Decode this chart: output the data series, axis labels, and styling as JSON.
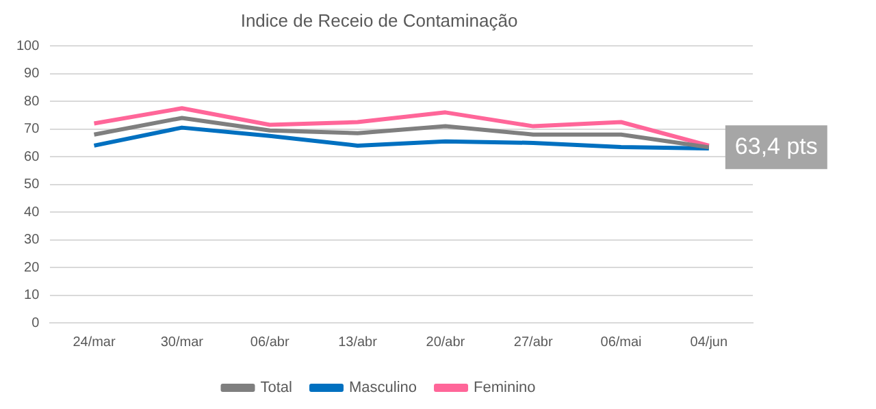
{
  "chart_data": {
    "type": "line",
    "title": "Indice de Receio de Contaminação",
    "categories": [
      "24/mar",
      "30/mar",
      "06/abr",
      "13/abr",
      "20/abr",
      "27/abr",
      "06/mai",
      "04/jun"
    ],
    "series": [
      {
        "name": "Total",
        "color": "#7f7f7f",
        "values": [
          68,
          74,
          69.5,
          68.5,
          71,
          68,
          68,
          63.4
        ]
      },
      {
        "name": "Masculino",
        "color": "#0070c0",
        "values": [
          64,
          70.5,
          67.5,
          64,
          65.5,
          65,
          63.5,
          63
        ]
      },
      {
        "name": "Feminino",
        "color": "#ff6699",
        "values": [
          72,
          77.5,
          71.5,
          72.5,
          76,
          71,
          72.5,
          64
        ]
      }
    ],
    "ylim": [
      0,
      100
    ],
    "yticks": [
      0,
      10,
      20,
      30,
      40,
      50,
      60,
      70,
      80,
      90,
      100
    ],
    "grid": "y",
    "legend": "bottom",
    "marker": "none",
    "line_style": "solid",
    "annotations": [
      {
        "text": "63,4 pts",
        "x": "04/jun",
        "y": 63.4
      }
    ]
  }
}
